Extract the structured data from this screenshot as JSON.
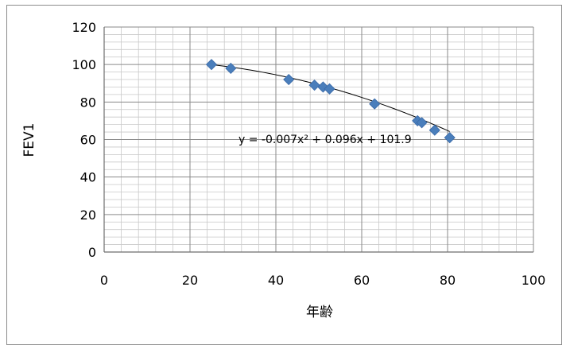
{
  "chart_data": {
    "type": "scatter",
    "title": "",
    "xlabel": "年齢",
    "ylabel": "FEV1",
    "xlim": [
      0,
      100
    ],
    "ylim": [
      0,
      120
    ],
    "x_ticks": [
      "0",
      "20",
      "40",
      "60",
      "80",
      "100"
    ],
    "y_ticks": [
      "0",
      "20",
      "40",
      "60",
      "80",
      "100",
      "120"
    ],
    "grid": true,
    "legend": "none",
    "marker": "diamond",
    "marker_color": "#4a7ebb",
    "points": [
      {
        "x": 25,
        "y": 100
      },
      {
        "x": 29.5,
        "y": 98
      },
      {
        "x": 43,
        "y": 92
      },
      {
        "x": 49,
        "y": 89
      },
      {
        "x": 51,
        "y": 88
      },
      {
        "x": 52.5,
        "y": 87
      },
      {
        "x": 63,
        "y": 79
      },
      {
        "x": 73,
        "y": 70
      },
      {
        "x": 74,
        "y": 69
      },
      {
        "x": 77,
        "y": 65
      },
      {
        "x": 80.5,
        "y": 61
      }
    ],
    "trendline": {
      "type": "polynomial",
      "equation": "y = -0.007x² + 0.096x + 101.9",
      "coefficients": {
        "a": -0.007,
        "b": 0.096,
        "c": 101.9
      },
      "x_range": [
        25,
        80.5
      ]
    }
  }
}
